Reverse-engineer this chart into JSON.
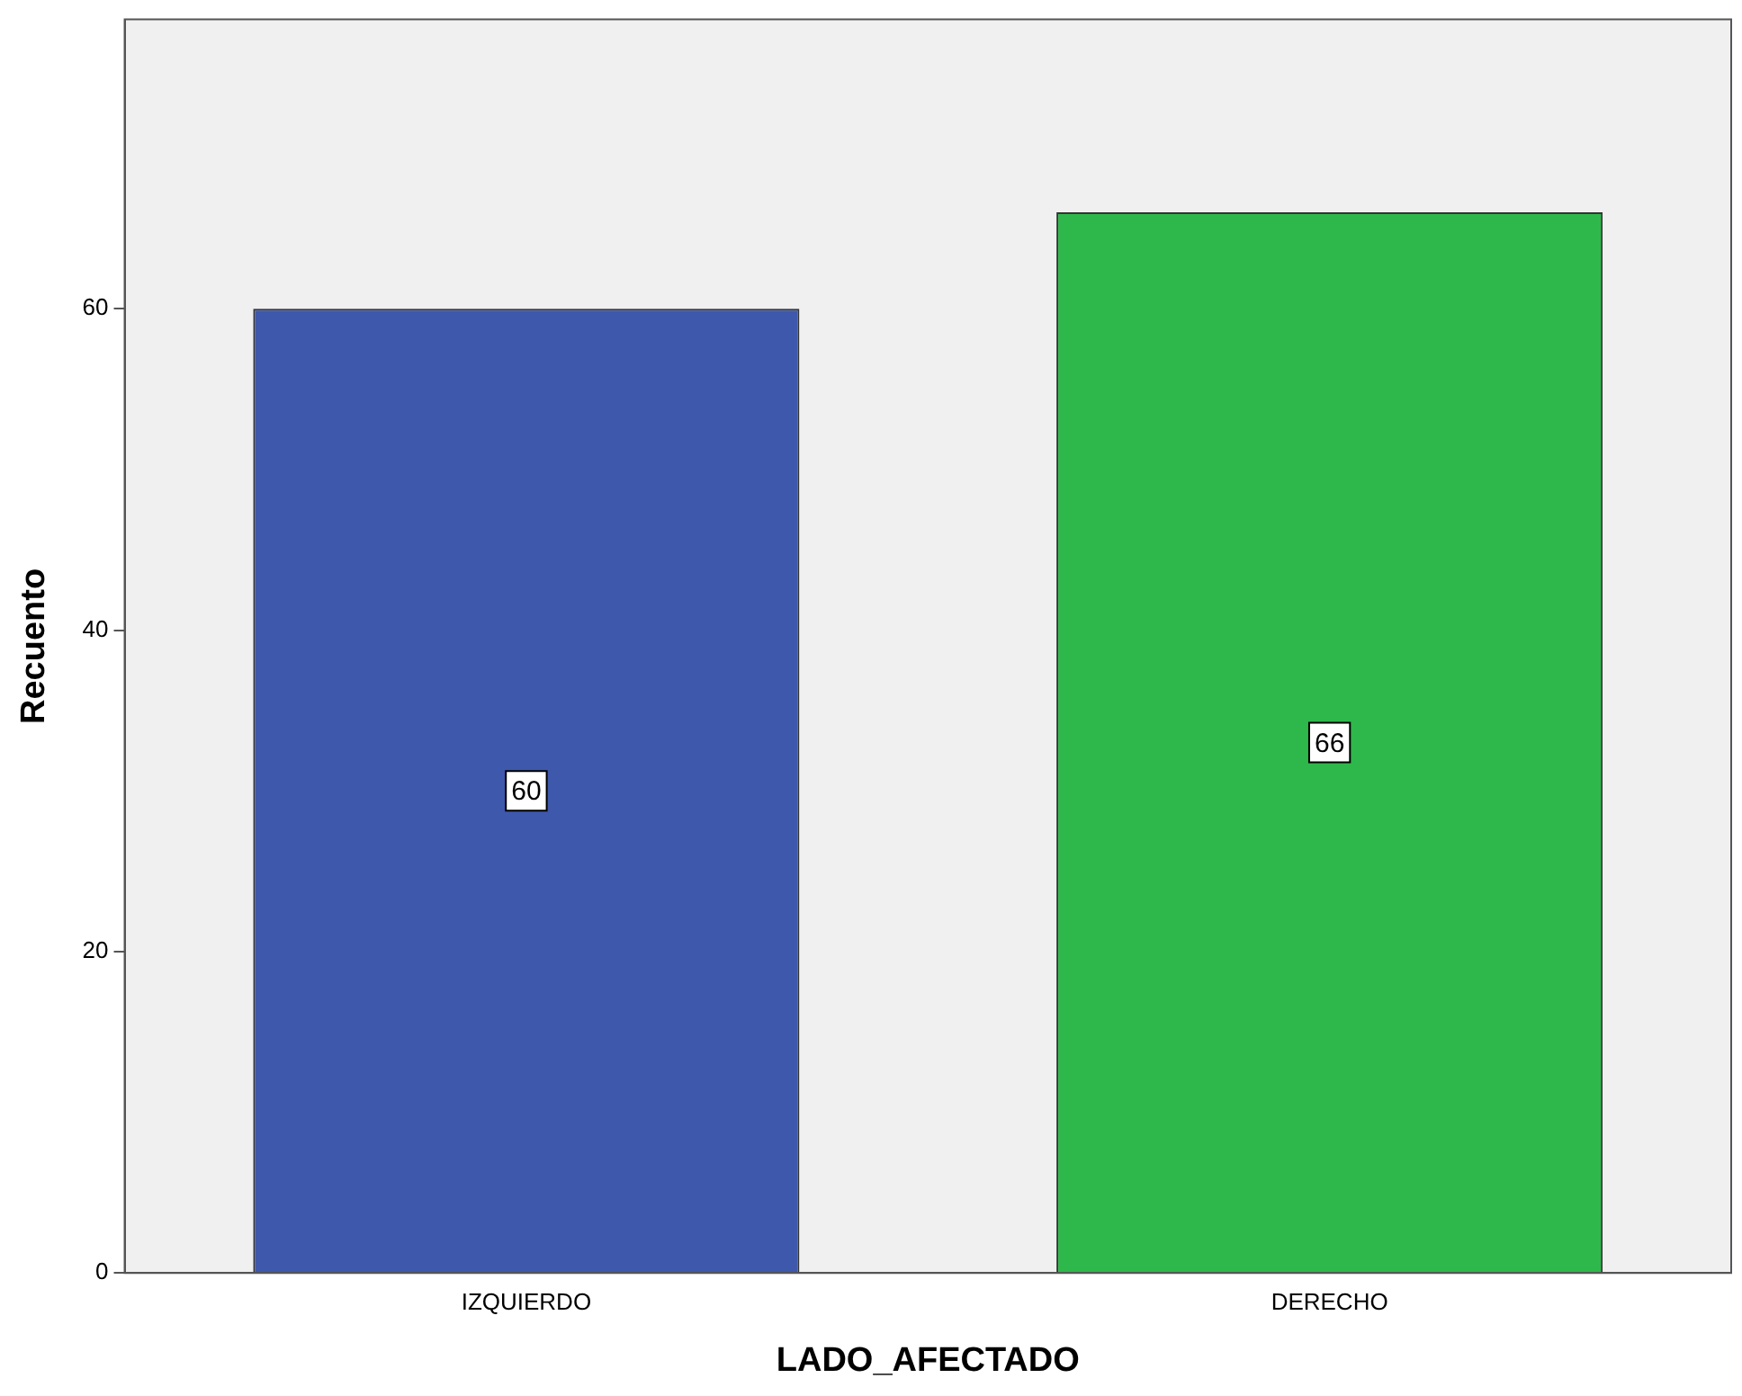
{
  "chart_data": {
    "type": "bar",
    "xlabel": "LADO_AFECTADO",
    "ylabel": "Recuento",
    "categories": [
      "IZQUIERDO",
      "DERECHO"
    ],
    "values": [
      60,
      66
    ],
    "colors": [
      "#3e58ac",
      "#2eb84b"
    ],
    "ylim": [
      0,
      78
    ],
    "yticks": [
      0,
      20,
      40,
      60
    ],
    "grid": false,
    "legend": false,
    "data_labels": true
  }
}
